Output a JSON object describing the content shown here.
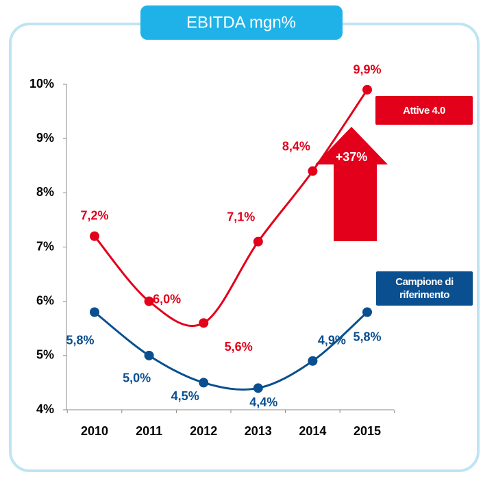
{
  "chart_data": {
    "type": "line",
    "title": "EBITDA mgn%",
    "categories": [
      "2010",
      "2011",
      "2012",
      "2013",
      "2014",
      "2015"
    ],
    "series": [
      {
        "name": "Attive 4.0",
        "color": "#e2001a",
        "values": [
          7.2,
          6.0,
          5.6,
          7.1,
          8.4,
          9.9
        ],
        "value_labels": [
          "7,2%",
          "6,0%",
          "5,6%",
          "7,1%",
          "8,4%",
          "9,9%"
        ]
      },
      {
        "name": "Campione di riferimento",
        "color": "#0a4f8f",
        "values": [
          5.8,
          5.0,
          4.5,
          4.4,
          4.9,
          5.8
        ],
        "value_labels": [
          "5,8%",
          "5,0%",
          "4,5%",
          "4,4%",
          "4,9%",
          "5,8%"
        ]
      }
    ],
    "ylim": [
      4,
      10
    ],
    "yticks": [
      {
        "value": 4,
        "label": "4%"
      },
      {
        "value": 5,
        "label": "5%"
      },
      {
        "value": 6,
        "label": "6%"
      },
      {
        "value": 7,
        "label": "7%"
      },
      {
        "value": 8,
        "label": "8%"
      },
      {
        "value": 9,
        "label": "9%"
      },
      {
        "value": 10,
        "label": "10%"
      }
    ],
    "annotation": "+37%"
  }
}
